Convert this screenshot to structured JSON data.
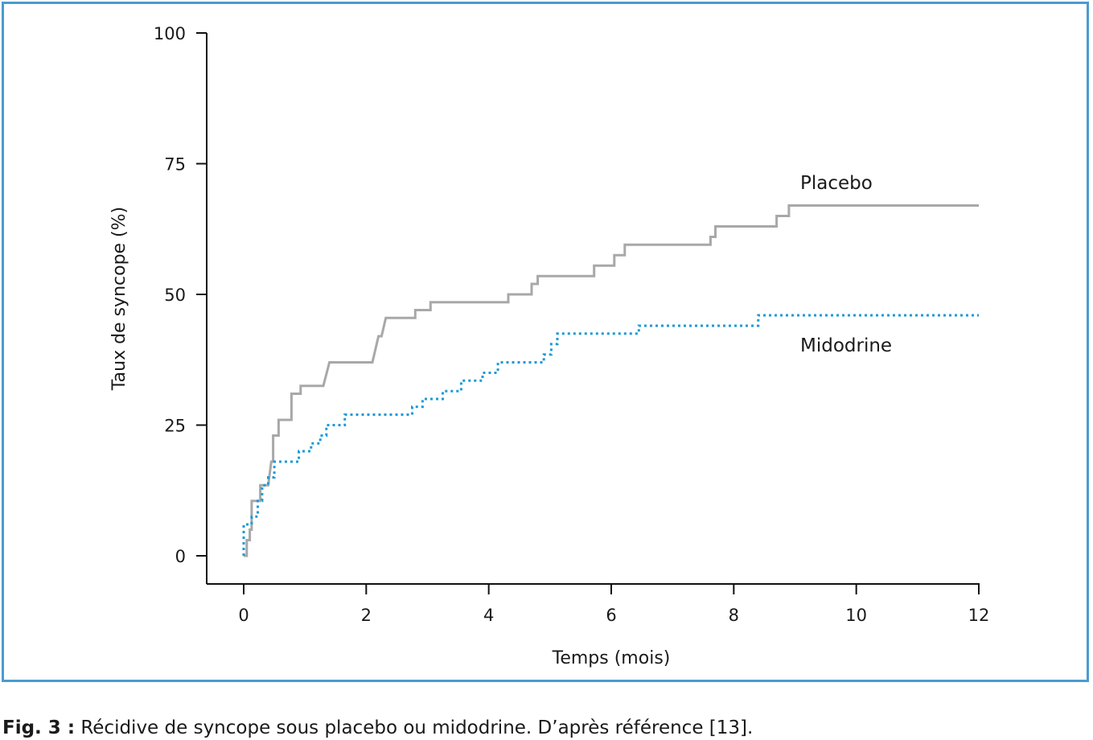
{
  "chart_data": {
    "type": "line",
    "xlabel": "Temps (mois)",
    "ylabel": "Taux de syncope (%)",
    "xlim": [
      0,
      12
    ],
    "ylim": [
      0,
      100
    ],
    "xticks": [
      0,
      2,
      4,
      6,
      8,
      10,
      12
    ],
    "yticks": [
      0,
      25,
      50,
      75,
      100
    ],
    "grid": false,
    "legend": "inline labels at line ends",
    "series": [
      {
        "name": "Placebo",
        "style": "solid",
        "color": "#a8a8a8",
        "x": [
          0,
          0.05,
          0.05,
          0.1,
          0.1,
          0.13,
          0.13,
          0.27,
          0.27,
          0.4,
          0.45,
          0.48,
          0.48,
          0.57,
          0.57,
          0.78,
          0.78,
          0.93,
          0.93,
          1.3,
          1.4,
          2.1,
          2.2,
          2.25,
          2.32,
          2.8,
          2.8,
          3.05,
          3.05,
          4.32,
          4.32,
          4.7,
          4.7,
          4.8,
          4.8,
          5.72,
          5.72,
          6.05,
          6.05,
          6.22,
          6.22,
          7.62,
          7.62,
          7.7,
          7.7,
          8.7,
          8.7,
          8.9,
          8.9,
          12
        ],
        "y": [
          0,
          0,
          3,
          3,
          5,
          5,
          10.5,
          10.5,
          13.5,
          13.5,
          18,
          18,
          23,
          23,
          26,
          26,
          31,
          31,
          32.5,
          32.5,
          37,
          37,
          42,
          42,
          45.5,
          45.5,
          47,
          47,
          48.5,
          48.5,
          50,
          50,
          52,
          52,
          53.5,
          53.5,
          55.5,
          55.5,
          57.5,
          57.5,
          59.5,
          59.5,
          61,
          61,
          63,
          63,
          65,
          65,
          67,
          67
        ]
      },
      {
        "name": "Midodrine",
        "style": "dotted",
        "color": "#1b9ad6",
        "x": [
          0,
          0,
          0.13,
          0.13,
          0.23,
          0.23,
          0.3,
          0.3,
          0.4,
          0.4,
          0.5,
          0.5,
          0.9,
          0.9,
          1.1,
          1.1,
          1.25,
          1.25,
          1.35,
          1.35,
          1.65,
          1.65,
          2.75,
          2.75,
          2.92,
          2.92,
          3.25,
          3.25,
          3.55,
          3.55,
          3.9,
          3.9,
          4.15,
          4.15,
          4.9,
          4.9,
          5.02,
          5.02,
          5.12,
          5.12,
          6.45,
          6.45,
          8.4,
          8.4,
          12
        ],
        "y": [
          0,
          6,
          6,
          7.5,
          7.5,
          10.5,
          10.5,
          13.5,
          13.5,
          15,
          15,
          18,
          18,
          20,
          20,
          21.5,
          21.5,
          23,
          23,
          25,
          25,
          27,
          27,
          28.5,
          28.5,
          30,
          30,
          31.5,
          31.5,
          33.5,
          33.5,
          35,
          35,
          37,
          37,
          38.5,
          38.5,
          40.5,
          40.5,
          42.5,
          42.5,
          44,
          44,
          46,
          46
        ]
      }
    ]
  },
  "caption": {
    "label": "Fig. 3 :",
    "text": " Récidive de syncope sous placebo ou midodrine. D’après référence [13]."
  }
}
